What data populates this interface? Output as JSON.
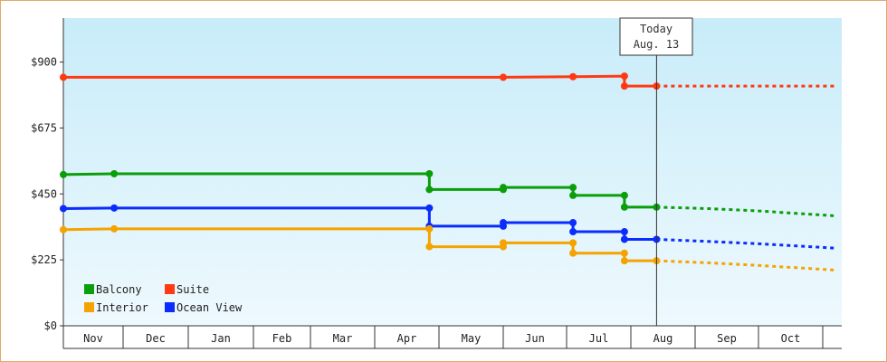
{
  "chart_data": {
    "type": "line",
    "x": [
      "Nov",
      "Dec",
      "Jan",
      "Feb",
      "Mar",
      "Apr",
      "May",
      "Jun",
      "Jul",
      "Aug",
      "Sep",
      "Oct"
    ],
    "ylim": [
      0,
      1050
    ],
    "yticks": [
      {
        "value": 0,
        "label": "$0"
      },
      {
        "value": 225,
        "label": "$225"
      },
      {
        "value": 450,
        "label": "$450"
      },
      {
        "value": 675,
        "label": "$675"
      },
      {
        "value": 900,
        "label": "$900"
      }
    ],
    "grid": false,
    "legend": "bottom-left",
    "today": {
      "line1": "Today",
      "line2": "Aug. 13",
      "x": 9.4
    },
    "series": [
      {
        "name": "Suite",
        "color": "#ff3a12",
        "points": [
          [
            0,
            848
          ],
          [
            6.2,
            848
          ],
          [
            7.0,
            848
          ],
          [
            8.1,
            850
          ],
          [
            8.9,
            852
          ],
          [
            8.9,
            818
          ],
          [
            9.4,
            818
          ]
        ],
        "markers": [
          [
            0,
            848
          ],
          [
            7.0,
            848
          ],
          [
            8.1,
            850
          ],
          [
            8.9,
            852
          ],
          [
            8.9,
            818
          ],
          [
            9.4,
            818
          ]
        ],
        "forecast": [
          [
            9.4,
            818
          ],
          [
            12.2,
            818
          ]
        ]
      },
      {
        "name": "Balcony",
        "color": "#0a9e0a",
        "points": [
          [
            0,
            516
          ],
          [
            0.85,
            519
          ],
          [
            5.85,
            519
          ],
          [
            5.85,
            465
          ],
          [
            7.0,
            465
          ],
          [
            7.0,
            472
          ],
          [
            8.1,
            472
          ],
          [
            8.1,
            445
          ],
          [
            8.9,
            445
          ],
          [
            8.9,
            405
          ],
          [
            9.4,
            405
          ]
        ],
        "markers": [
          [
            0,
            516
          ],
          [
            0.85,
            519
          ],
          [
            5.85,
            519
          ],
          [
            5.85,
            465
          ],
          [
            7.0,
            465
          ],
          [
            7.0,
            472
          ],
          [
            8.1,
            472
          ],
          [
            8.1,
            445
          ],
          [
            8.9,
            445
          ],
          [
            8.9,
            405
          ],
          [
            9.4,
            405
          ]
        ],
        "forecast": [
          [
            9.4,
            405
          ],
          [
            10.2,
            400
          ],
          [
            11.0,
            392
          ],
          [
            12.2,
            375
          ]
        ]
      },
      {
        "name": "Ocean View",
        "color": "#0a2cff",
        "points": [
          [
            0,
            400
          ],
          [
            0.85,
            402
          ],
          [
            5.85,
            402
          ],
          [
            5.85,
            340
          ],
          [
            7.0,
            340
          ],
          [
            7.0,
            352
          ],
          [
            8.1,
            352
          ],
          [
            8.1,
            321
          ],
          [
            8.9,
            321
          ],
          [
            8.9,
            295
          ],
          [
            9.4,
            295
          ]
        ],
        "markers": [
          [
            0,
            400
          ],
          [
            0.85,
            402
          ],
          [
            5.85,
            402
          ],
          [
            5.85,
            340
          ],
          [
            7.0,
            340
          ],
          [
            7.0,
            352
          ],
          [
            8.1,
            352
          ],
          [
            8.1,
            321
          ],
          [
            8.9,
            321
          ],
          [
            8.9,
            295
          ],
          [
            9.4,
            295
          ]
        ],
        "forecast": [
          [
            9.4,
            295
          ],
          [
            10.2,
            288
          ],
          [
            11.0,
            280
          ],
          [
            12.2,
            265
          ]
        ]
      },
      {
        "name": "Interior",
        "color": "#f5a300",
        "points": [
          [
            0,
            328
          ],
          [
            0.85,
            331
          ],
          [
            5.85,
            331
          ],
          [
            5.85,
            270
          ],
          [
            7.0,
            270
          ],
          [
            7.0,
            283
          ],
          [
            8.1,
            283
          ],
          [
            8.1,
            248
          ],
          [
            8.9,
            248
          ],
          [
            8.9,
            222
          ],
          [
            9.4,
            222
          ]
        ],
        "markers": [
          [
            0,
            328
          ],
          [
            0.85,
            331
          ],
          [
            5.85,
            331
          ],
          [
            5.85,
            270
          ],
          [
            7.0,
            270
          ],
          [
            7.0,
            283
          ],
          [
            8.1,
            283
          ],
          [
            8.1,
            248
          ],
          [
            8.9,
            248
          ],
          [
            8.9,
            222
          ],
          [
            9.4,
            222
          ]
        ],
        "forecast": [
          [
            9.4,
            222
          ],
          [
            10.2,
            215
          ],
          [
            11.0,
            206
          ],
          [
            12.2,
            190
          ]
        ]
      }
    ],
    "legend_rows": [
      [
        "Balcony",
        "Suite"
      ],
      [
        "Interior",
        "Ocean View"
      ]
    ]
  }
}
